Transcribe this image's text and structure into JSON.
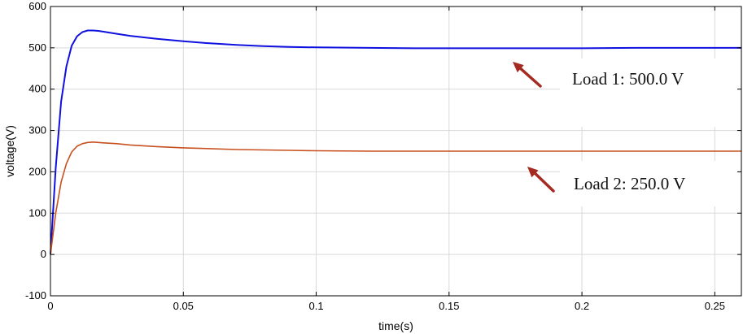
{
  "chart_data": {
    "type": "line",
    "xlabel": "time(s)",
    "ylabel": "voltage(V)",
    "xlim": [
      0,
      0.26
    ],
    "ylim": [
      -100,
      600
    ],
    "xticks": [
      0,
      0.05,
      0.1,
      0.15,
      0.2,
      0.25
    ],
    "xtick_labels": [
      "0",
      "0.05",
      "0.1",
      "0.15",
      "0.2",
      "0.25"
    ],
    "yticks": [
      -100,
      0,
      100,
      200,
      300,
      400,
      500,
      600
    ],
    "ytick_labels": [
      "-100",
      "0",
      "100",
      "200",
      "300",
      "400",
      "500",
      "600"
    ],
    "grid": true,
    "series": [
      {
        "color": "#1010e0",
        "x": [
          0,
          0.002,
          0.004,
          0.006,
          0.008,
          0.01,
          0.012,
          0.014,
          0.016,
          0.018,
          0.02,
          0.025,
          0.03,
          0.04,
          0.05,
          0.06,
          0.07,
          0.08,
          0.09,
          0.1,
          0.12,
          0.14,
          0.16,
          0.18,
          0.2,
          0.22,
          0.24,
          0.26
        ],
        "y": [
          0,
          210,
          370,
          455,
          505,
          528,
          538,
          542,
          542,
          541,
          539,
          534,
          529,
          522,
          516,
          511,
          507,
          504,
          502,
          501,
          500,
          499,
          499,
          499,
          499,
          500,
          500,
          500
        ]
      },
      {
        "color": "#c8501e",
        "x": [
          0,
          0.002,
          0.004,
          0.006,
          0.008,
          0.01,
          0.012,
          0.014,
          0.016,
          0.018,
          0.02,
          0.025,
          0.03,
          0.04,
          0.05,
          0.06,
          0.07,
          0.08,
          0.09,
          0.1,
          0.12,
          0.14,
          0.16,
          0.18,
          0.2,
          0.22,
          0.24,
          0.26
        ],
        "y": [
          0,
          100,
          175,
          220,
          248,
          262,
          268,
          271,
          272,
          271,
          270,
          268,
          265,
          261,
          258,
          256,
          254,
          253,
          252,
          251,
          250,
          250,
          250,
          250,
          250,
          250,
          250,
          250
        ]
      }
    ],
    "annotations": [
      {
        "text": "Load 1: 500.0 V",
        "arrow_color": "#a52a22"
      },
      {
        "text": "Load 2: 250.0 V",
        "arrow_color": "#a52a22"
      }
    ]
  }
}
